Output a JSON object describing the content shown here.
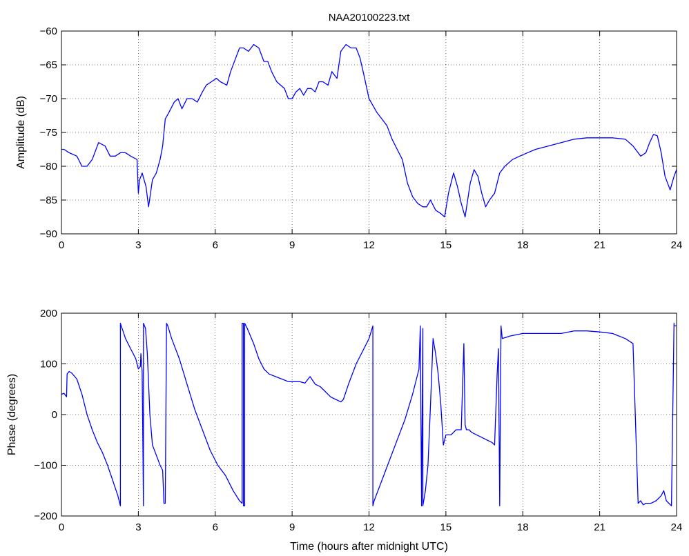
{
  "chart_data": [
    {
      "type": "line",
      "title": "NAA20100223.txt",
      "xlabel": "",
      "ylabel": "Amplitude (dB)",
      "xlim": [
        0,
        24
      ],
      "ylim": [
        -90,
        -60
      ],
      "xticks": [
        "0",
        "3",
        "6",
        "9",
        "12",
        "15",
        "18",
        "21",
        "24"
      ],
      "yticks": [
        "-60",
        "-65",
        "-70",
        "-75",
        "-80",
        "-85",
        "-90"
      ],
      "grid": true,
      "line_color": "#0000ff",
      "series": [
        {
          "x": [
            0,
            0.1,
            0.3,
            0.6,
            0.8,
            1.0,
            1.2,
            1.45,
            1.7,
            1.9,
            2.1,
            2.3,
            2.5,
            2.7,
            2.95,
            3.0,
            3.05,
            3.15,
            3.3,
            3.4,
            3.55,
            3.7,
            3.85,
            3.95,
            4.05,
            4.2,
            4.4,
            4.55,
            4.7,
            4.9,
            5.1,
            5.3,
            5.5,
            5.65,
            5.85,
            6.05,
            6.2,
            6.45,
            6.6,
            6.8,
            6.95,
            7.1,
            7.3,
            7.5,
            7.7,
            7.9,
            8.05,
            8.2,
            8.4,
            8.55,
            8.7,
            8.85,
            9.0,
            9.15,
            9.3,
            9.45,
            9.6,
            9.75,
            9.9,
            10.05,
            10.2,
            10.4,
            10.55,
            10.75,
            10.9,
            11.1,
            11.3,
            11.5,
            11.65,
            11.8,
            12.0,
            12.15,
            12.3,
            12.5,
            12.7,
            12.9,
            13.1,
            13.3,
            13.5,
            13.7,
            13.9,
            14.1,
            14.25,
            14.4,
            14.6,
            14.8,
            14.95,
            15.1,
            15.3,
            15.45,
            15.6,
            15.75,
            15.95,
            16.1,
            16.25,
            16.4,
            16.55,
            16.7,
            16.9,
            17.1,
            17.3,
            17.6,
            18.0,
            18.5,
            19.0,
            19.5,
            20.0,
            20.5,
            21.0,
            21.5,
            22.0,
            22.3,
            22.6,
            22.8,
            22.95,
            23.1,
            23.25,
            23.4,
            23.55,
            23.75,
            23.9,
            24.0
          ],
          "values": [
            -77.5,
            -77.5,
            -78,
            -78.5,
            -80,
            -80,
            -79,
            -76.5,
            -77,
            -78.5,
            -78.5,
            -78,
            -78,
            -78.5,
            -79,
            -84,
            -82,
            -81,
            -83,
            -86,
            -82,
            -81,
            -79,
            -77,
            -73,
            -72,
            -70.5,
            -70,
            -71.5,
            -70,
            -70,
            -70.5,
            -69,
            -68,
            -67.5,
            -67,
            -67.5,
            -68,
            -66,
            -64,
            -62.5,
            -62.5,
            -63,
            -62,
            -62.5,
            -64.5,
            -64.5,
            -66,
            -67.5,
            -68,
            -68.5,
            -70,
            -70,
            -69,
            -68.5,
            -69.5,
            -68.5,
            -68.5,
            -69,
            -67.5,
            -67.5,
            -68,
            -66,
            -67,
            -63,
            -62,
            -62.5,
            -62.5,
            -64,
            -66.5,
            -70,
            -71,
            -72,
            -73,
            -74,
            -76,
            -77.5,
            -79,
            -82.5,
            -84.5,
            -85.5,
            -86,
            -86,
            -85,
            -86.5,
            -87,
            -87.5,
            -84,
            -81,
            -83,
            -85.5,
            -87.5,
            -82.5,
            -80.5,
            -81.5,
            -84,
            -86,
            -85,
            -84,
            -81,
            -80,
            -79,
            -78.3,
            -77.5,
            -77,
            -76.5,
            -76,
            -75.8,
            -75.8,
            -75.8,
            -76,
            -77,
            -78.5,
            -78,
            -76.5,
            -75.3,
            -75.5,
            -78,
            -81.5,
            -83.5,
            -81.5,
            -80.5
          ]
        }
      ]
    },
    {
      "type": "line",
      "title": "",
      "xlabel": "Time (hours after midnight UTC)",
      "ylabel": "Phase (degrees)",
      "xlim": [
        0,
        24
      ],
      "ylim": [
        -200,
        200
      ],
      "xticks": [
        "0",
        "3",
        "6",
        "9",
        "12",
        "15",
        "18",
        "21",
        "24"
      ],
      "yticks": [
        "200",
        "100",
        "0",
        "-100",
        "-200"
      ],
      "grid": true,
      "line_color": "#0000ff",
      "series": [
        {
          "x": [
            0,
            0.1,
            0.2,
            0.22,
            0.3,
            0.4,
            0.6,
            0.8,
            1.0,
            1.2,
            1.4,
            1.6,
            1.8,
            2.0,
            2.2,
            2.3,
            2.3,
            2.33,
            2.4,
            2.5,
            2.7,
            2.9,
            3.0,
            3.08,
            3.1,
            3.15,
            3.2,
            3.2,
            3.28,
            3.35,
            3.45,
            3.55,
            3.7,
            3.85,
            3.95,
            4.0,
            4.05,
            4.1,
            4.15,
            4.15,
            4.3,
            4.6,
            4.9,
            5.2,
            5.5,
            5.8,
            6.1,
            6.4,
            6.7,
            6.95,
            7.05,
            7.05,
            7.1,
            7.1,
            7.15,
            7.15,
            7.25,
            7.5,
            7.7,
            7.9,
            8.1,
            8.35,
            8.6,
            8.85,
            9.1,
            9.3,
            9.5,
            9.7,
            9.9,
            10.1,
            10.3,
            10.5,
            10.7,
            10.9,
            11.0,
            11.2,
            11.5,
            11.8,
            12.0,
            12.15,
            12.15,
            12.2,
            12.5,
            12.8,
            13.1,
            13.4,
            13.7,
            13.95,
            14.0,
            14.05,
            14.1,
            14.1,
            14.2,
            14.3,
            14.4,
            14.5,
            14.6,
            14.7,
            14.8,
            14.9,
            15.0,
            15.2,
            15.4,
            15.6,
            15.7,
            15.75,
            15.8,
            15.9,
            16.0,
            16.2,
            16.4,
            16.6,
            16.8,
            16.9,
            17.0,
            17.05,
            17.1,
            17.15,
            17.2,
            17.5,
            18.0,
            18.5,
            19.0,
            19.5,
            20.0,
            20.5,
            21.0,
            21.5,
            22.0,
            22.3,
            22.5,
            22.6,
            22.7,
            22.8,
            23.0,
            23.2,
            23.4,
            23.5,
            23.6,
            23.7,
            23.8,
            23.9,
            23.9,
            24.0
          ],
          "values": [
            40,
            42,
            35,
            80,
            85,
            82,
            70,
            40,
            0,
            -30,
            -55,
            -75,
            -100,
            -130,
            -160,
            -180,
            180,
            175,
            165,
            150,
            130,
            110,
            90,
            95,
            120,
            85,
            -180,
            180,
            170,
            120,
            0,
            -60,
            -80,
            -100,
            -110,
            -175,
            -175,
            180,
            175,
            175,
            150,
            110,
            60,
            10,
            -30,
            -70,
            -100,
            -120,
            -150,
            -170,
            -175,
            180,
            180,
            -180,
            -180,
            180,
            170,
            140,
            110,
            90,
            80,
            75,
            70,
            65,
            65,
            65,
            62,
            75,
            60,
            55,
            45,
            35,
            30,
            25,
            30,
            60,
            100,
            130,
            150,
            175,
            -180,
            -170,
            -130,
            -90,
            -50,
            -10,
            40,
            90,
            175,
            -180,
            170,
            -180,
            -150,
            -100,
            20,
            150,
            120,
            80,
            20,
            -60,
            -40,
            -40,
            -30,
            -30,
            140,
            -20,
            -30,
            -30,
            -35,
            -40,
            -45,
            -50,
            -55,
            -60,
            80,
            130,
            -180,
            175,
            150,
            155,
            160,
            160,
            160,
            160,
            165,
            165,
            163,
            160,
            150,
            140,
            -175,
            -170,
            -178,
            -175,
            -175,
            -170,
            -160,
            -150,
            -170,
            -175,
            -180,
            180,
            175,
            175
          ]
        }
      ]
    }
  ]
}
